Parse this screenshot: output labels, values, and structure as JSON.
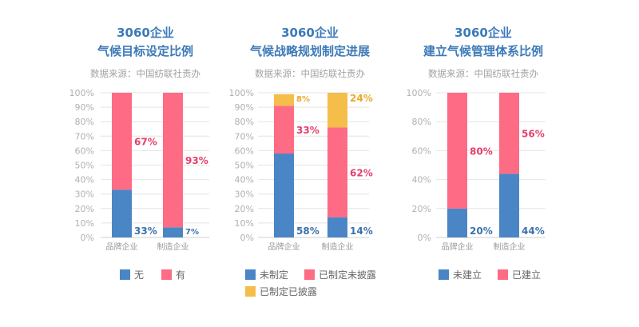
{
  "chart_data": [
    {
      "type": "bar",
      "stacked": true,
      "title_line1": "3060企业",
      "title_line2": "气候目标设定比例",
      "source": "数据来源：中国纺联社责办",
      "categories": [
        "品牌企业",
        "制造企业"
      ],
      "series": [
        {
          "name": "无",
          "values": [
            33,
            7
          ],
          "color": "#4a86c5",
          "label_color": "#3b72aa"
        },
        {
          "name": "有",
          "values": [
            67,
            93
          ],
          "color": "#fd6b85",
          "label_color": "#e5406a"
        }
      ],
      "ylim": [
        0,
        100
      ],
      "yticks": [
        "0%",
        "10%",
        "20%",
        "30%",
        "40%",
        "50%",
        "60%",
        "70%",
        "80%",
        "90%",
        "100%"
      ],
      "grid": true,
      "legend": "bottom"
    },
    {
      "type": "bar",
      "stacked": true,
      "title_line1": "3060企业",
      "title_line2": "气候战略规划制定进展",
      "source": "数据来源：中国纺联社责办",
      "categories": [
        "品牌企业",
        "制造企业"
      ],
      "series": [
        {
          "name": "未制定",
          "values": [
            58,
            14
          ],
          "color": "#4a86c5",
          "label_color": "#3b72aa"
        },
        {
          "name": "已制定未披露",
          "values": [
            33,
            62
          ],
          "color": "#fd6b85",
          "label_color": "#e5406a"
        },
        {
          "name": "已制定已披露",
          "values": [
            8,
            24
          ],
          "color": "#f5bd4a",
          "label_color": "#e9a92a"
        }
      ],
      "ylim": [
        0,
        100
      ],
      "yticks": [
        "0%",
        "10%",
        "20%",
        "30%",
        "40%",
        "50%",
        "60%",
        "70%",
        "80%",
        "90%",
        "100%"
      ],
      "grid": true,
      "legend": "bottom"
    },
    {
      "type": "bar",
      "stacked": true,
      "title_line1": "3060企业",
      "title_line2": "建立气候管理体系比例",
      "source": "数据来源：中国纺联社责办",
      "categories": [
        "品牌企业",
        "制造企业"
      ],
      "series": [
        {
          "name": "未建立",
          "values": [
            20,
            44
          ],
          "color": "#4a86c5",
          "label_color": "#3b72aa"
        },
        {
          "name": "已建立",
          "values": [
            80,
            56
          ],
          "color": "#fd6b85",
          "label_color": "#e5406a"
        }
      ],
      "ylim": [
        0,
        100
      ],
      "yticks": [
        "0%",
        "20%",
        "40%",
        "60%",
        "80%",
        "100%"
      ],
      "grid": true,
      "legend": "bottom"
    }
  ]
}
